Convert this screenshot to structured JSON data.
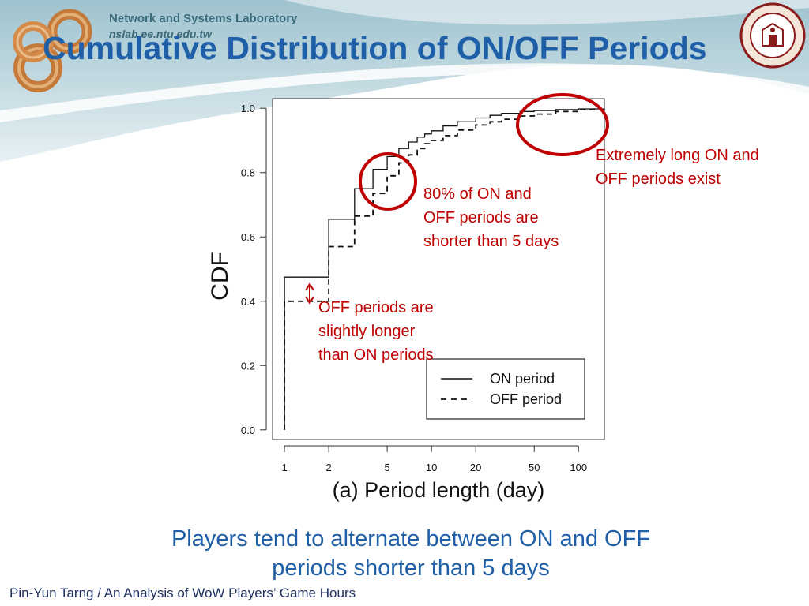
{
  "slide": {
    "lab_name": "Network and Systems Laboratory",
    "lab_url": "nslab.ee.ntu.edu.tw",
    "title": "Cumulative Distribution of ON/OFF Periods",
    "annotations": {
      "long_periods": [
        "Extremely long ON and",
        "OFF periods exist"
      ],
      "eighty_percent": [
        "80% of ON and",
        "OFF periods are",
        "shorter than 5 days"
      ],
      "off_longer": [
        "OFF periods are",
        "slightly longer",
        "than ON periods"
      ]
    },
    "caption": [
      "Players tend to alternate between ON and OFF",
      "periods shorter than 5 days"
    ],
    "footer": "Pin-Yun Tarng / An Analysis of WoW Players’ Game Hours",
    "colors": {
      "title": "#1f5fa8",
      "annotation": "#c00000",
      "caption": "#1f5fa8"
    },
    "icons": [
      "nslab-rings-logo",
      "university-seal"
    ]
  },
  "chart_data": {
    "type": "line",
    "step": true,
    "x_scale": "log",
    "xlabel": "(a) Period length (day)",
    "ylabel": "CDF",
    "x_ticks": [
      1,
      2,
      5,
      10,
      20,
      50,
      100
    ],
    "x_tick_labels": [
      "1",
      "2",
      "5",
      "10",
      "20",
      "50",
      "100"
    ],
    "y_ticks": [
      0.0,
      0.2,
      0.4,
      0.6,
      0.8,
      1.0
    ],
    "y_tick_labels": [
      "0.0",
      "0.2",
      "0.4",
      "0.6",
      "0.8",
      "1.0"
    ],
    "xlim": [
      0.83,
      150
    ],
    "ylim": [
      -0.03,
      1.03
    ],
    "grid": false,
    "legend_position": "bottom-right",
    "series": [
      {
        "name": "ON period",
        "style": "solid",
        "x": [
          1,
          2,
          3,
          4,
          5,
          6,
          7,
          8,
          9,
          10,
          12,
          15,
          20,
          25,
          30,
          40,
          50,
          70,
          100,
          150
        ],
        "y": [
          0.475,
          0.655,
          0.75,
          0.81,
          0.85,
          0.875,
          0.895,
          0.91,
          0.92,
          0.93,
          0.945,
          0.958,
          0.97,
          0.978,
          0.984,
          0.99,
          0.993,
          0.996,
          0.998,
          1.0
        ]
      },
      {
        "name": "OFF period",
        "style": "dashed",
        "x": [
          1,
          2,
          3,
          4,
          5,
          6,
          7,
          8,
          9,
          10,
          12,
          15,
          20,
          25,
          30,
          40,
          50,
          70,
          100,
          150
        ],
        "y": [
          0.4,
          0.57,
          0.665,
          0.735,
          0.79,
          0.83,
          0.855,
          0.875,
          0.89,
          0.9,
          0.915,
          0.932,
          0.948,
          0.958,
          0.966,
          0.976,
          0.982,
          0.99,
          0.996,
          1.0
        ]
      }
    ]
  }
}
